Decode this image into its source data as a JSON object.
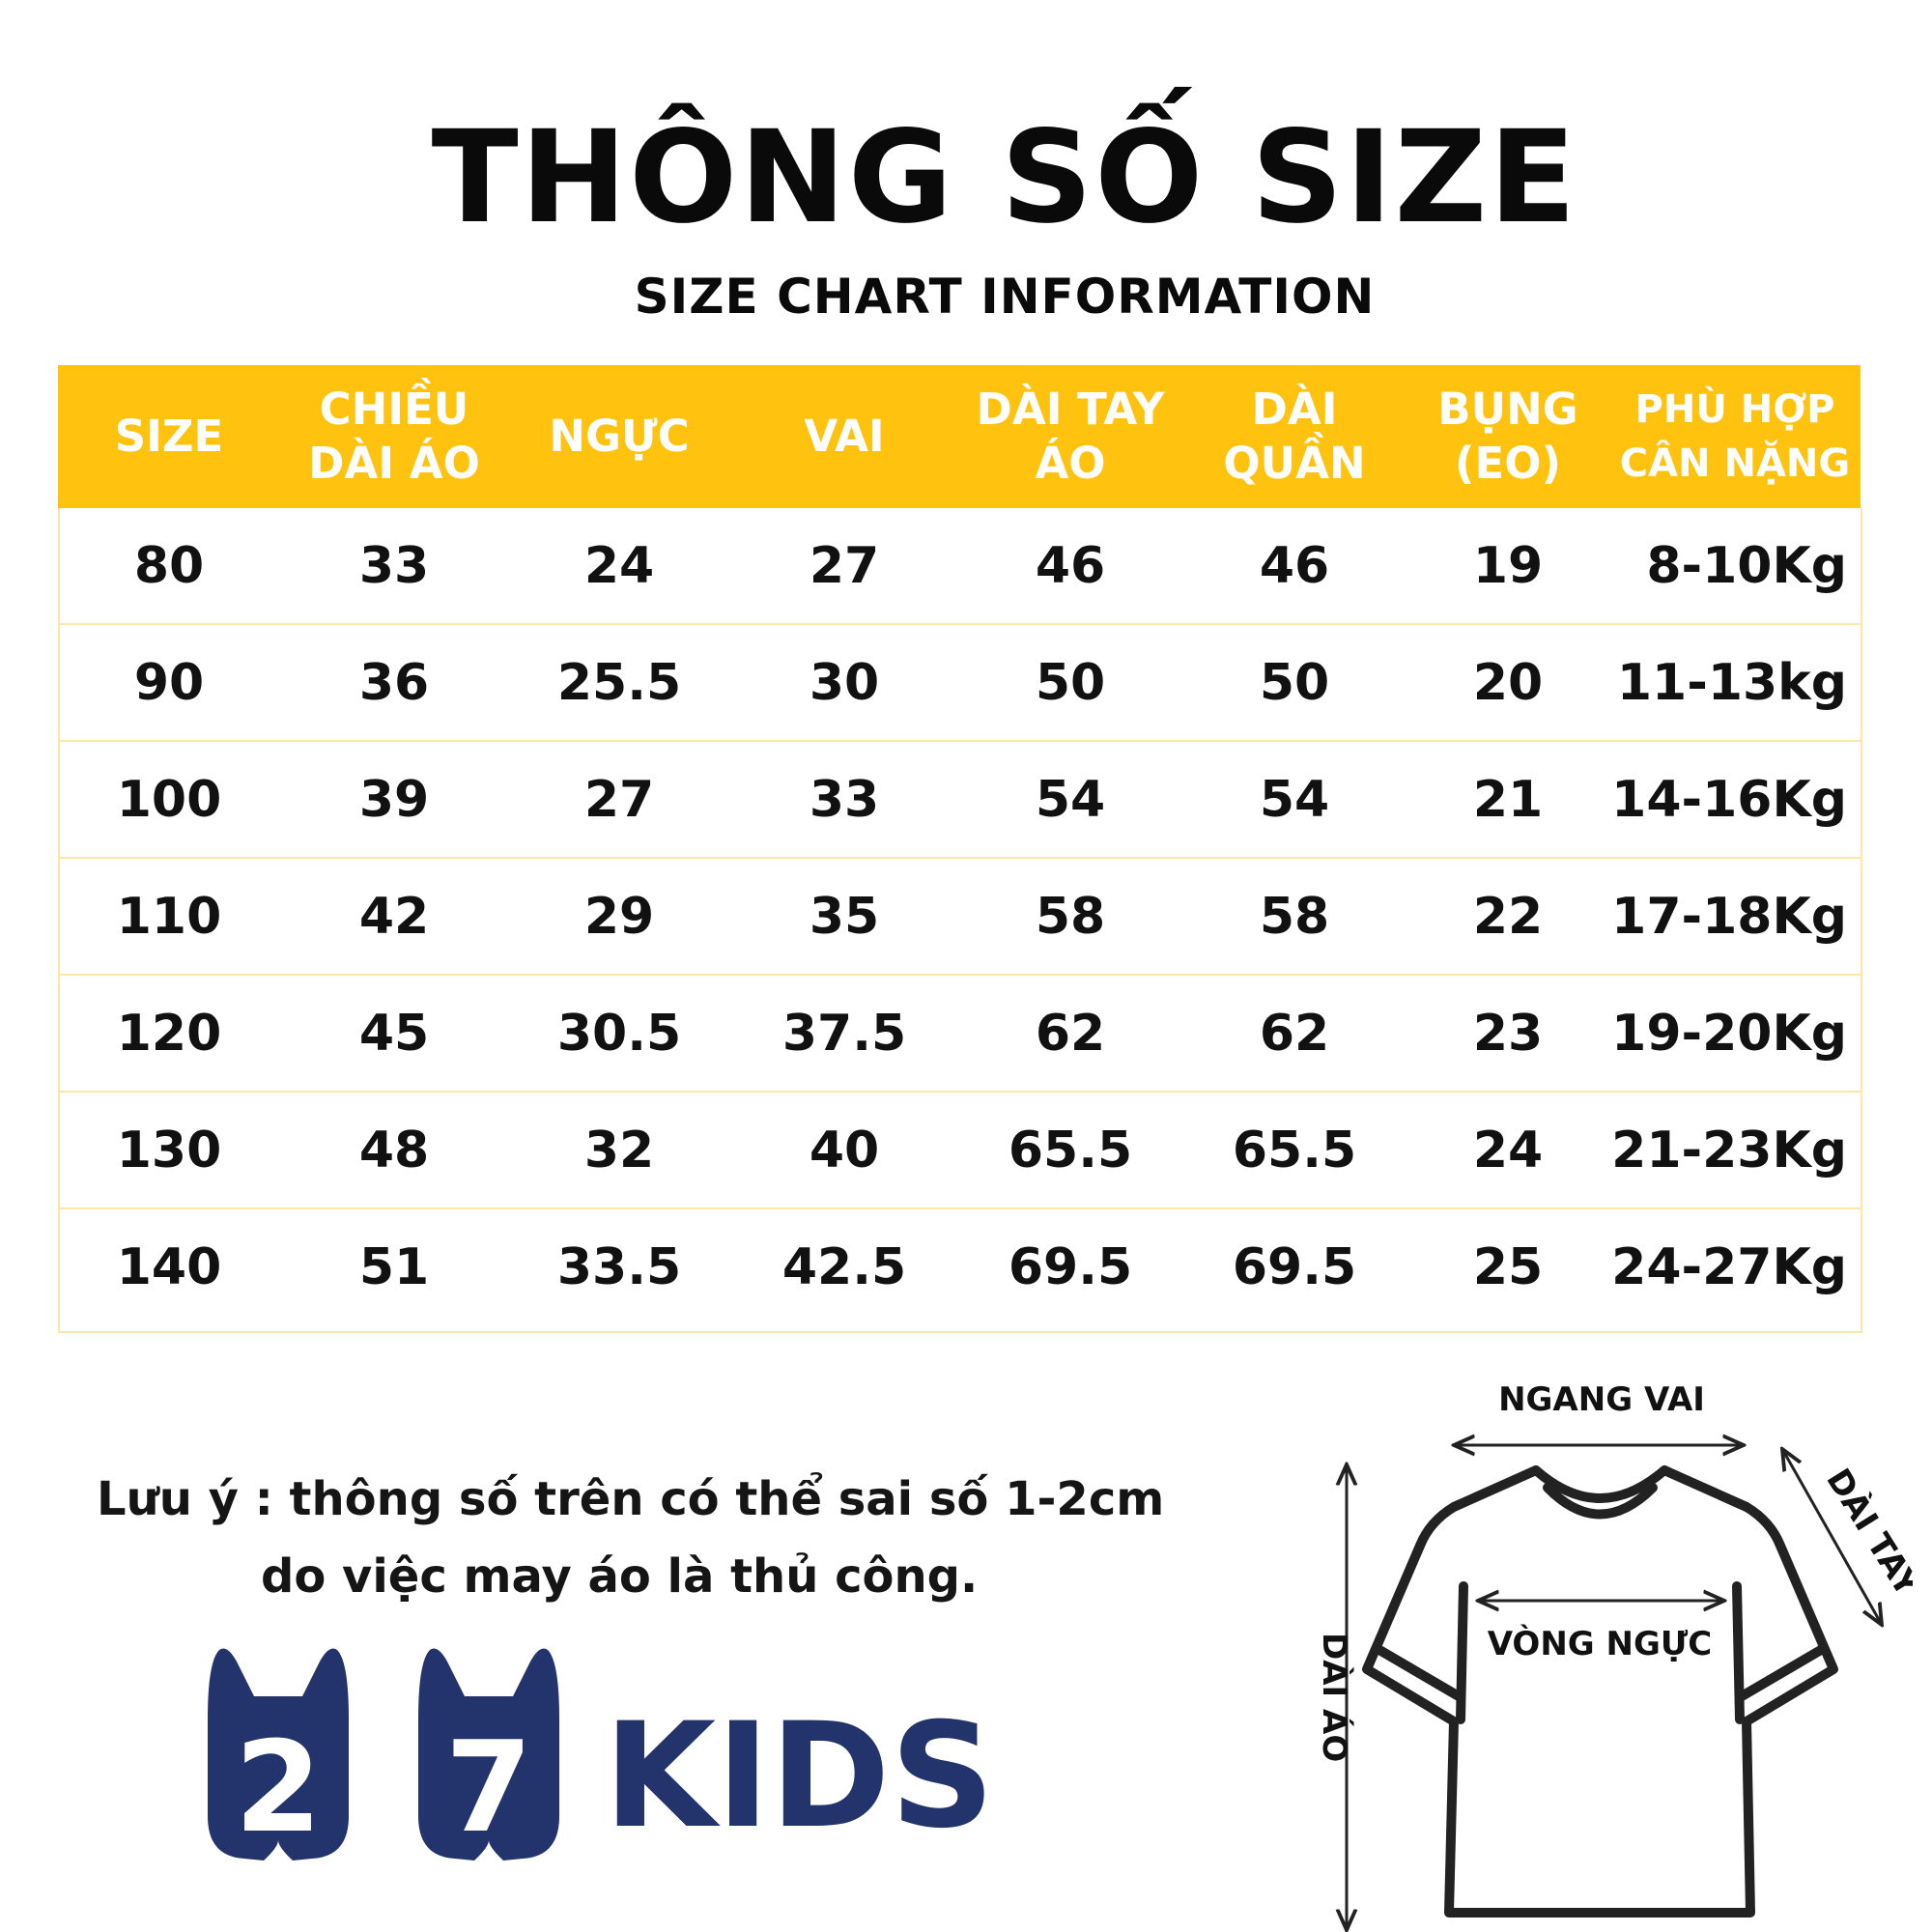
{
  "header": {
    "title": "THÔNG SỐ SIZE",
    "subtitle": "SIZE CHART INFORMATION"
  },
  "table": {
    "columns": [
      [
        "SIZE"
      ],
      [
        "CHIỀU",
        "DÀI ÁO"
      ],
      [
        "NGỰC"
      ],
      [
        "VAI"
      ],
      [
        "DÀI TAY",
        "ÁO"
      ],
      [
        "DÀI",
        "QUẦN"
      ],
      [
        "BỤNG",
        "(EO)"
      ],
      [
        "PHÙ HỢP",
        "CÂN NẶNG"
      ]
    ],
    "rows": [
      [
        "80",
        "33",
        "24",
        "27",
        "46",
        "46",
        "19",
        "8-10Kg"
      ],
      [
        "90",
        "36",
        "25.5",
        "30",
        "50",
        "50",
        "20",
        "11-13kg"
      ],
      [
        "100",
        "39",
        "27",
        "33",
        "54",
        "54",
        "21",
        "14-16Kg"
      ],
      [
        "110",
        "42",
        "29",
        "35",
        "58",
        "58",
        "22",
        "17-18Kg"
      ],
      [
        "120",
        "45",
        "30.5",
        "37.5",
        "62",
        "62",
        "23",
        "19-20Kg"
      ],
      [
        "130",
        "48",
        "32",
        "40",
        "65.5",
        "65.5",
        "24",
        "21-23Kg"
      ],
      [
        "140",
        "51",
        "33.5",
        "42.5",
        "69.5",
        "69.5",
        "25",
        "24-27Kg"
      ]
    ]
  },
  "note": {
    "line1": "Lưu ý : thông số trên có thể sai số 1-2cm",
    "line2": "do việc may áo là thủ công."
  },
  "logo": {
    "digit1": "2",
    "digit2": "7",
    "word": "KIDS",
    "color": "#22346B"
  },
  "diagram": {
    "shoulder_label": "NGANG VAI",
    "sleeve_label": "DÀI TAY",
    "chest_label": "VÒNG NGỰC",
    "length_label": "DÀI ÁO"
  },
  "colors": {
    "header_bg": "#FFC20E",
    "row_border": "#FCE7A6"
  }
}
